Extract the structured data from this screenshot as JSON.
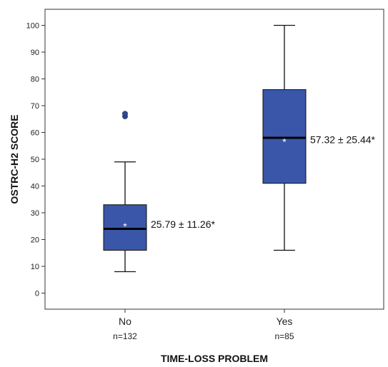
{
  "chart_data": {
    "type": "boxplot",
    "xlabel": "TIME-LOSS PROBLEM",
    "ylabel": "OSTRC-H2 SCORE",
    "ylim": [
      -6,
      106
    ],
    "yticks": [
      0,
      10,
      20,
      30,
      40,
      50,
      60,
      70,
      80,
      90,
      100
    ],
    "grid": false,
    "box_color": "#3a56a8",
    "outlier_color": "#2f4a90",
    "groups": [
      {
        "category": "No",
        "n_label": "n=132",
        "whisker_low": 8,
        "q1": 16,
        "median": 24,
        "q3": 33,
        "whisker_high": 49,
        "mean": 25.79,
        "outliers": [
          66,
          67
        ],
        "annotation": "25.79 ± 11.26*"
      },
      {
        "category": "Yes",
        "n_label": "n=85",
        "whisker_low": 16,
        "q1": 41,
        "median": 58,
        "q3": 76,
        "whisker_high": 100,
        "mean": 57.32,
        "outliers": [],
        "annotation": "57.32 ± 25.44*"
      }
    ]
  }
}
